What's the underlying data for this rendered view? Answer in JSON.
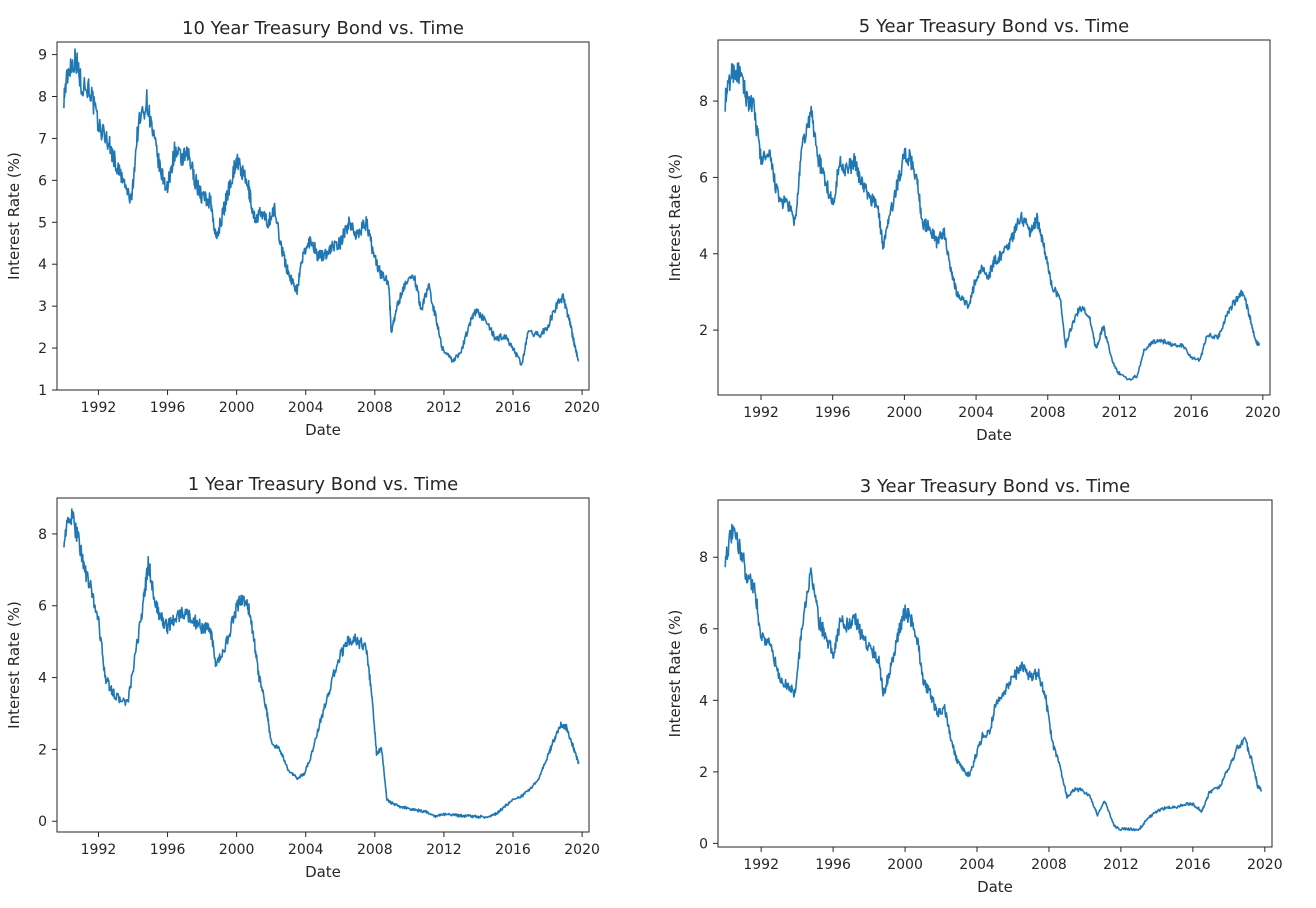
{
  "chart_data": [
    {
      "type": "line",
      "title": "10 Year Treasury Bond vs. Time",
      "xlabel": "Date",
      "ylabel": "Interest Rate (%)",
      "xlim": [
        1989.6,
        2020.4
      ],
      "ylim": [
        1,
        9.3
      ],
      "xticks": [
        "1992",
        "1996",
        "2000",
        "2004",
        "2008",
        "2012",
        "2016",
        "2020"
      ],
      "yticks": [
        "1",
        "2",
        "3",
        "4",
        "5",
        "6",
        "7",
        "8",
        "9"
      ],
      "color": "#1f77b4",
      "series": [
        {
          "x": [
            1990.0,
            1990.3,
            1990.7,
            1991.0,
            1991.5,
            1992.0,
            1992.5,
            1993.0,
            1993.5,
            1993.9,
            1994.3,
            1994.8,
            1995.2,
            1995.6,
            1996.0,
            1996.4,
            1996.8,
            1997.2,
            1997.6,
            1998.0,
            1998.5,
            1998.8,
            1999.2,
            1999.6,
            2000.0,
            2000.3,
            2000.7,
            2001.0,
            2001.4,
            2001.8,
            2002.2,
            2002.6,
            2002.9,
            2003.2,
            2003.5,
            2003.9,
            2004.3,
            2004.7,
            2005.0,
            2005.5,
            2006.0,
            2006.5,
            2007.0,
            2007.5,
            2007.9,
            2008.3,
            2008.8,
            2008.95,
            2009.3,
            2009.8,
            2010.3,
            2010.7,
            2011.1,
            2011.6,
            2011.9,
            2012.5,
            2013.0,
            2013.5,
            2013.9,
            2014.5,
            2015.0,
            2015.5,
            2016.0,
            2016.5,
            2016.9,
            2017.5,
            2018.0,
            2018.5,
            2018.9,
            2019.3,
            2019.6,
            2019.8
          ],
          "y": [
            8.0,
            8.7,
            8.9,
            8.3,
            8.2,
            7.3,
            7.0,
            6.4,
            5.9,
            5.5,
            7.3,
            7.9,
            7.0,
            6.2,
            5.8,
            6.7,
            6.5,
            6.6,
            6.0,
            5.6,
            5.5,
            4.6,
            5.2,
            5.9,
            6.5,
            6.2,
            5.8,
            5.1,
            5.2,
            5.0,
            5.3,
            4.4,
            3.9,
            3.6,
            3.4,
            4.3,
            4.6,
            4.2,
            4.2,
            4.4,
            4.5,
            5.0,
            4.7,
            5.0,
            4.3,
            3.8,
            3.6,
            2.4,
            3.0,
            3.6,
            3.7,
            2.9,
            3.5,
            2.6,
            2.0,
            1.7,
            1.9,
            2.6,
            2.9,
            2.6,
            2.2,
            2.3,
            2.0,
            1.6,
            2.4,
            2.3,
            2.5,
            3.0,
            3.2,
            2.6,
            2.0,
            1.7
          ]
        }
      ]
    },
    {
      "type": "line",
      "title": "5 Year Treasury Bond vs. Time",
      "xlabel": "Date",
      "ylabel": "Interest Rate (%)",
      "xlim": [
        1989.6,
        2020.4
      ],
      "ylim": [
        0.3,
        9.6
      ],
      "xticks": [
        "1992",
        "1996",
        "2000",
        "2004",
        "2008",
        "2012",
        "2016",
        "2020"
      ],
      "yticks": [
        "2",
        "4",
        "6",
        "8"
      ],
      "color": "#1f77b4",
      "series": [
        {
          "x": [
            1990.0,
            1990.4,
            1990.8,
            1991.2,
            1991.6,
            1992.0,
            1992.5,
            1993.0,
            1993.5,
            1993.9,
            1994.3,
            1994.8,
            1995.2,
            1995.6,
            1996.0,
            1996.4,
            1996.8,
            1997.2,
            1997.6,
            1998.0,
            1998.5,
            1998.8,
            1999.2,
            1999.6,
            2000.0,
            2000.3,
            2000.7,
            2001.0,
            2001.4,
            2001.8,
            2002.2,
            2002.6,
            2002.9,
            2003.3,
            2003.6,
            2003.9,
            2004.3,
            2004.7,
            2005.0,
            2005.5,
            2006.0,
            2006.5,
            2007.0,
            2007.4,
            2007.8,
            2008.2,
            2008.7,
            2009.0,
            2009.4,
            2009.8,
            2010.3,
            2010.7,
            2011.1,
            2011.6,
            2011.9,
            2012.5,
            2013.0,
            2013.4,
            2013.9,
            2014.5,
            2015.0,
            2015.5,
            2016.0,
            2016.5,
            2016.9,
            2017.5,
            2018.0,
            2018.5,
            2018.9,
            2019.3,
            2019.6,
            2019.8
          ],
          "y": [
            8.0,
            8.8,
            8.7,
            8.1,
            7.8,
            6.5,
            6.5,
            5.4,
            5.3,
            4.8,
            6.8,
            7.7,
            6.5,
            5.9,
            5.3,
            6.4,
            6.2,
            6.4,
            5.9,
            5.5,
            5.3,
            4.2,
            5.0,
            5.8,
            6.6,
            6.5,
            6.0,
            4.8,
            4.7,
            4.3,
            4.6,
            3.6,
            3.0,
            2.8,
            2.6,
            3.2,
            3.6,
            3.4,
            3.8,
            4.0,
            4.4,
            5.0,
            4.6,
            4.9,
            4.2,
            3.2,
            2.8,
            1.6,
            2.2,
            2.6,
            2.4,
            1.5,
            2.1,
            1.2,
            0.9,
            0.7,
            0.8,
            1.5,
            1.7,
            1.7,
            1.6,
            1.6,
            1.3,
            1.2,
            1.9,
            1.8,
            2.4,
            2.8,
            3.0,
            2.3,
            1.7,
            1.6
          ]
        }
      ]
    },
    {
      "type": "line",
      "title": "1 Year Treasury Bond vs. Time",
      "xlabel": "Date",
      "ylabel": "Interest Rate (%)",
      "xlim": [
        1989.6,
        2020.4
      ],
      "ylim": [
        -0.3,
        9.0
      ],
      "xticks": [
        "1992",
        "1996",
        "2000",
        "2004",
        "2008",
        "2012",
        "2016",
        "2020"
      ],
      "yticks": [
        "0",
        "2",
        "4",
        "6",
        "8"
      ],
      "color": "#1f77b4",
      "series": [
        {
          "x": [
            1990.0,
            1990.4,
            1990.8,
            1991.2,
            1991.6,
            1992.0,
            1992.4,
            1992.8,
            1993.2,
            1993.7,
            1994.2,
            1994.6,
            1994.9,
            1995.3,
            1995.7,
            1996.0,
            1996.5,
            1997.0,
            1997.5,
            1998.0,
            1998.5,
            1998.8,
            1999.3,
            1999.8,
            2000.2,
            2000.6,
            2000.9,
            2001.3,
            2001.7,
            2002.0,
            2002.5,
            2003.0,
            2003.5,
            2003.9,
            2004.3,
            2004.8,
            2005.3,
            2005.8,
            2006.3,
            2006.6,
            2007.0,
            2007.5,
            2007.8,
            2008.1,
            2008.4,
            2008.7,
            2009.0,
            2009.5,
            2010.0,
            2010.5,
            2011.0,
            2011.5,
            2012.0,
            2012.5,
            2013.0,
            2013.5,
            2014.0,
            2014.5,
            2015.0,
            2015.5,
            2016.0,
            2016.5,
            2017.0,
            2017.5,
            2018.0,
            2018.4,
            2018.8,
            2019.1,
            2019.4,
            2019.6,
            2019.8
          ],
          "y": [
            7.9,
            8.5,
            8.0,
            7.0,
            6.4,
            5.6,
            4.0,
            3.6,
            3.4,
            3.3,
            4.8,
            6.1,
            7.2,
            6.0,
            5.6,
            5.4,
            5.7,
            5.8,
            5.6,
            5.4,
            5.3,
            4.3,
            4.8,
            5.6,
            6.2,
            6.1,
            5.4,
            4.0,
            3.2,
            2.2,
            2.0,
            1.4,
            1.2,
            1.3,
            1.8,
            2.7,
            3.5,
            4.4,
            4.9,
            5.1,
            5.0,
            4.9,
            3.6,
            1.9,
            2.0,
            0.6,
            0.5,
            0.4,
            0.35,
            0.3,
            0.25,
            0.15,
            0.2,
            0.18,
            0.15,
            0.14,
            0.12,
            0.12,
            0.2,
            0.4,
            0.6,
            0.7,
            0.9,
            1.2,
            1.8,
            2.3,
            2.7,
            2.6,
            2.2,
            1.9,
            1.6
          ]
        }
      ]
    },
    {
      "type": "line",
      "title": "3 Year Treasury Bond vs. Time",
      "xlabel": "Date",
      "ylabel": "Interest Rate (%)",
      "xlim": [
        1989.6,
        2020.4
      ],
      "ylim": [
        -0.1,
        9.6
      ],
      "xticks": [
        "1992",
        "1996",
        "2000",
        "2004",
        "2008",
        "2012",
        "2016",
        "2020"
      ],
      "yticks": [
        "0",
        "2",
        "4",
        "6",
        "8"
      ],
      "color": "#1f77b4",
      "series": [
        {
          "x": [
            1990.0,
            1990.4,
            1990.8,
            1991.2,
            1991.6,
            1992.0,
            1992.5,
            1993.0,
            1993.5,
            1993.9,
            1994.3,
            1994.8,
            1995.2,
            1995.6,
            1996.0,
            1996.4,
            1996.8,
            1997.2,
            1997.6,
            1998.0,
            1998.5,
            1998.8,
            1999.2,
            1999.6,
            2000.0,
            2000.3,
            2000.7,
            2001.0,
            2001.4,
            2001.8,
            2002.2,
            2002.6,
            2002.9,
            2003.3,
            2003.6,
            2003.9,
            2004.3,
            2004.7,
            2005.0,
            2005.5,
            2006.0,
            2006.5,
            2007.0,
            2007.4,
            2007.8,
            2008.2,
            2008.6,
            2009.0,
            2009.4,
            2009.8,
            2010.3,
            2010.7,
            2011.1,
            2011.6,
            2011.9,
            2012.5,
            2013.0,
            2013.5,
            2014.0,
            2014.5,
            2015.0,
            2015.5,
            2016.0,
            2016.5,
            2016.9,
            2017.5,
            2018.0,
            2018.5,
            2018.9,
            2019.3,
            2019.6,
            2019.8
          ],
          "y": [
            8.0,
            8.7,
            8.3,
            7.5,
            7.2,
            5.8,
            5.6,
            4.6,
            4.4,
            4.2,
            6.2,
            7.6,
            6.2,
            5.8,
            5.3,
            6.2,
            6.1,
            6.3,
            5.8,
            5.5,
            5.2,
            4.2,
            4.9,
            5.8,
            6.5,
            6.3,
            5.7,
            4.5,
            4.2,
            3.6,
            3.8,
            2.8,
            2.3,
            2.0,
            1.9,
            2.4,
            3.0,
            3.1,
            3.8,
            4.2,
            4.6,
            5.0,
            4.6,
            4.8,
            4.1,
            2.8,
            2.2,
            1.3,
            1.5,
            1.5,
            1.3,
            0.8,
            1.2,
            0.5,
            0.4,
            0.4,
            0.4,
            0.7,
            0.9,
            1.0,
            1.0,
            1.1,
            1.1,
            0.9,
            1.4,
            1.6,
            2.1,
            2.7,
            2.9,
            2.3,
            1.6,
            1.5
          ]
        }
      ]
    }
  ]
}
